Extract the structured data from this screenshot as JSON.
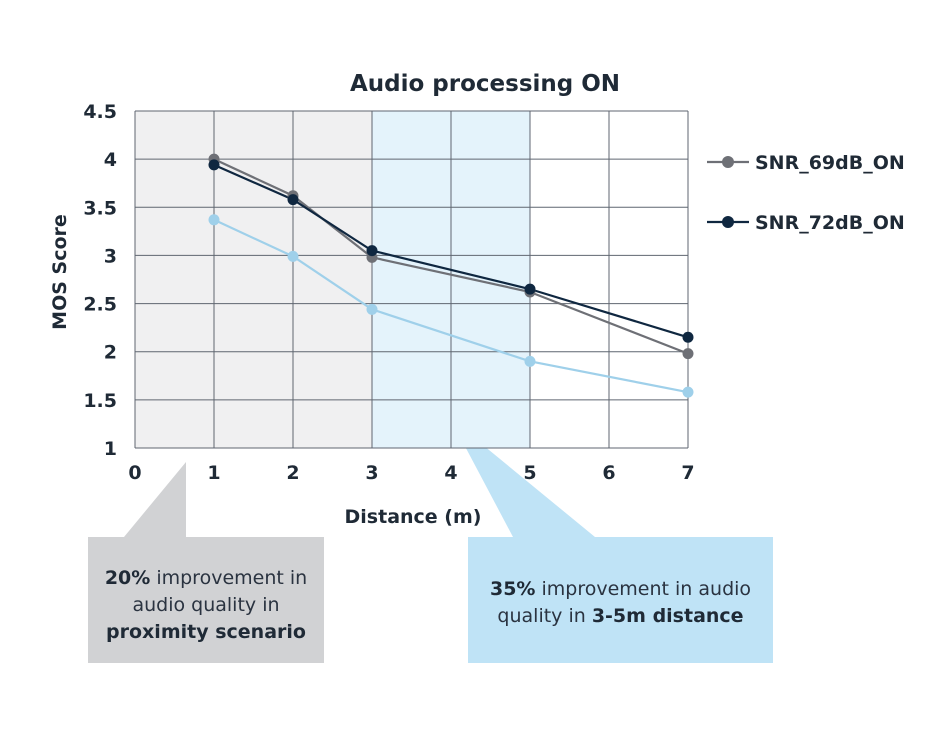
{
  "chart_data": {
    "type": "line",
    "title": "Audio processing ON",
    "xlabel": "Distance (m)",
    "ylabel": "MOS Score",
    "xlim": [
      0,
      7
    ],
    "ylim": [
      1,
      4.5
    ],
    "x_ticks": [
      "0",
      "1",
      "2",
      "3",
      "4",
      "5",
      "6",
      "7"
    ],
    "y_ticks": [
      "1",
      "1.5",
      "2",
      "2.5",
      "3",
      "3.5",
      "4",
      "4.5"
    ],
    "grid": true,
    "legend_position": "right",
    "x": [
      1,
      2,
      3,
      5,
      7
    ],
    "series": [
      {
        "name": "SNR_69dB_ON",
        "color": "#6e7076",
        "values": [
          4.0,
          3.62,
          2.98,
          2.62,
          1.98
        ],
        "in_legend": true
      },
      {
        "name": "SNR_72dB_ON",
        "color": "#0f2740",
        "values": [
          3.94,
          3.58,
          3.05,
          2.65,
          2.15
        ],
        "in_legend": true
      },
      {
        "color": "#9fd0ea",
        "values": [
          3.37,
          2.99,
          2.44,
          1.9,
          1.58
        ],
        "in_legend": false
      }
    ],
    "shaded_regions": [
      {
        "x_from": 0,
        "x_to": 3,
        "color": "#f0f0f1"
      },
      {
        "x_from": 3,
        "x_to": 5,
        "color": "#e4f3fb"
      }
    ],
    "callouts": [
      {
        "percent": "20%",
        "text_mid": " improvement in audio quality in ",
        "bold_end": "proximity scenario",
        "color": "#d1d2d4"
      },
      {
        "percent": "35%",
        "text_mid": " improvement in audio quality in ",
        "bold_end": "3-5m distance",
        "color": "#bfe3f6"
      }
    ]
  }
}
